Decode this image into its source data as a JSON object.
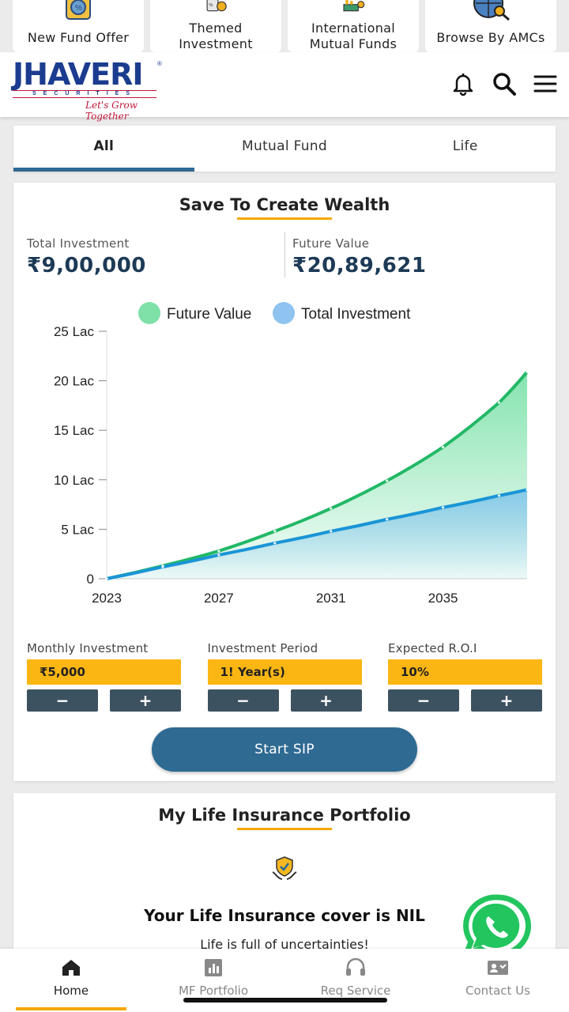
{
  "quick_links": [
    {
      "label": "New Fund Offer",
      "icon": "nfo-icon"
    },
    {
      "label": "Themed Investment",
      "icon": "themed-icon"
    },
    {
      "label": "International Mutual Funds",
      "icon": "international-icon"
    },
    {
      "label": "Browse By AMCs",
      "icon": "globe-search-icon"
    }
  ],
  "header": {
    "brand": "JHAVERI",
    "sub": "SECURITIES",
    "tagline": "Let's Grow Together",
    "reg": "®"
  },
  "tabs": [
    {
      "label": "All",
      "active": true
    },
    {
      "label": "Mutual Fund",
      "active": false
    },
    {
      "label": "Life",
      "active": false
    }
  ],
  "sip": {
    "title": "Save To Create Wealth",
    "total_investment_label": "Total Investment",
    "total_investment_value": "₹9,00,000",
    "future_value_label": "Future Value",
    "future_value_value": "₹20,89,621",
    "controls": [
      {
        "label": "Monthly Investment",
        "value": "₹5,000"
      },
      {
        "label": "Investment Period",
        "value": "1! Year(s)"
      },
      {
        "label": "Expected R.O.I",
        "value": "10%"
      }
    ],
    "minus": "−",
    "plus": "+",
    "start_label": "Start SIP"
  },
  "chart_data": {
    "type": "area",
    "legend_position": "top",
    "x_ticks": [
      "2023",
      "2027",
      "2031",
      "2035"
    ],
    "y_ticks": [
      "0",
      "5 Lac",
      "10 Lac",
      "15 Lac",
      "20 Lac",
      "25 Lac"
    ],
    "xlim": [
      2023,
      2038
    ],
    "ylim": [
      0,
      25
    ],
    "x": [
      2023,
      2025,
      2027,
      2029,
      2031,
      2033,
      2035,
      2037,
      2038
    ],
    "series": [
      {
        "name": "Future Value",
        "color": "#22b866",
        "values": [
          0,
          1.3,
          2.8,
          4.8,
          7.1,
          9.9,
          13.3,
          17.8,
          20.9
        ]
      },
      {
        "name": "Total Investment",
        "color": "#1a95d6",
        "values": [
          0,
          1.2,
          2.4,
          3.6,
          4.8,
          6.0,
          7.2,
          8.4,
          9.0
        ]
      }
    ],
    "grid": false
  },
  "life": {
    "title": "My Life Insurance Portfolio",
    "cover_text": "Your Life Insurance cover is NIL",
    "sub_text": "Life is full of uncertainties!"
  },
  "bottom_nav": [
    {
      "label": "Home",
      "icon": "home-icon",
      "active": true
    },
    {
      "label": "MF Portfolio",
      "icon": "bar-chart-icon",
      "active": false
    },
    {
      "label": "Req Service",
      "icon": "headset-icon",
      "active": false
    },
    {
      "label": "Contact Us",
      "icon": "contact-card-icon",
      "active": false
    }
  ]
}
